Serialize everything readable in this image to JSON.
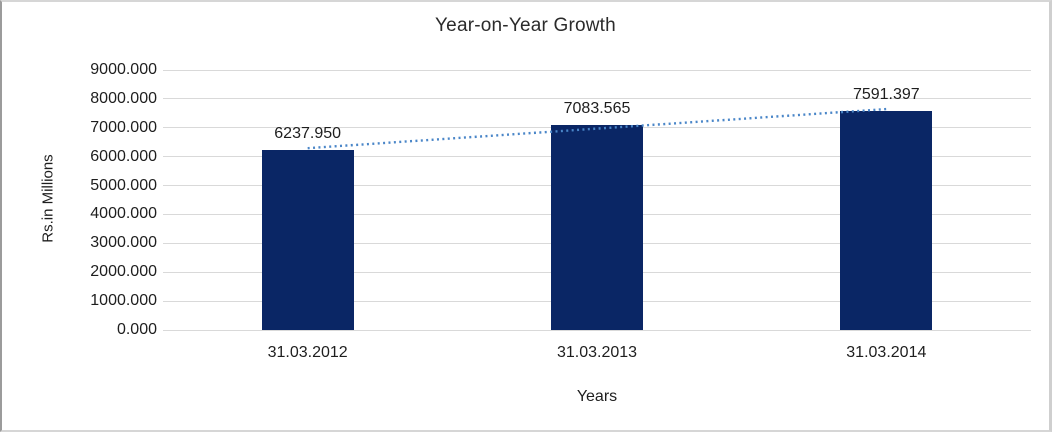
{
  "chart_data": {
    "type": "bar",
    "title": "Year-on-Year Growth",
    "xlabel": "Years",
    "ylabel": "Rs.in Millions",
    "categories": [
      "31.03.2012",
      "31.03.2013",
      "31.03.2014"
    ],
    "values": [
      6237.95,
      7083.565,
      7591.397
    ],
    "data_labels": [
      "6237.950",
      "7083.565",
      "7591.397"
    ],
    "y_ticks": [
      "9000.000",
      "8000.000",
      "7000.000",
      "6000.000",
      "5000.000",
      "4000.000",
      "3000.000",
      "2000.000",
      "1000.000",
      "0.000"
    ],
    "ylim": [
      0,
      9000
    ],
    "grid": true,
    "legend": "none",
    "bar_color": "#0a2665",
    "gridline_color": "#d9d9d9",
    "trendline": {
      "type": "linear",
      "style": "dotted",
      "color": "#4a86c8"
    }
  }
}
